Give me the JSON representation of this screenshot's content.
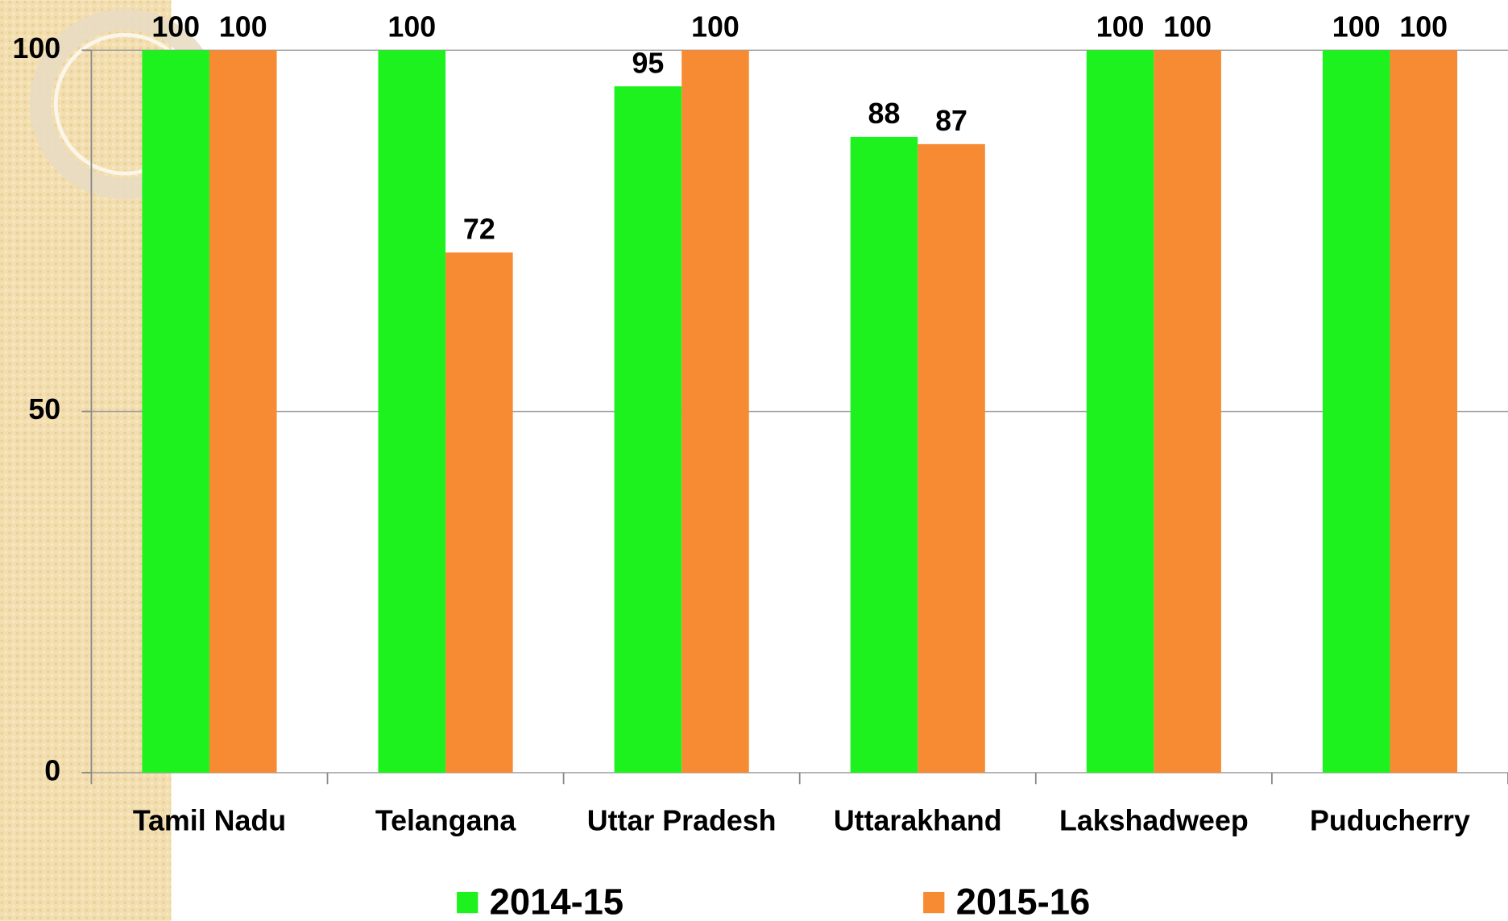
{
  "chart_data": {
    "type": "bar",
    "categories": [
      "Tamil Nadu",
      "Telangana",
      "Uttar Pradesh",
      "Uttarakhand",
      "Lakshadweep",
      "Puducherry"
    ],
    "series": [
      {
        "name": "2014-15",
        "color": "#1ef21e",
        "values": [
          100,
          100,
          95,
          88,
          100,
          100
        ]
      },
      {
        "name": "2015-16",
        "color": "#f68b33",
        "values": [
          100,
          72,
          100,
          87,
          100,
          100
        ]
      }
    ],
    "ylim": [
      0,
      100
    ],
    "yticks": [
      0,
      50,
      100
    ],
    "grid": true,
    "legend": "bottom"
  }
}
